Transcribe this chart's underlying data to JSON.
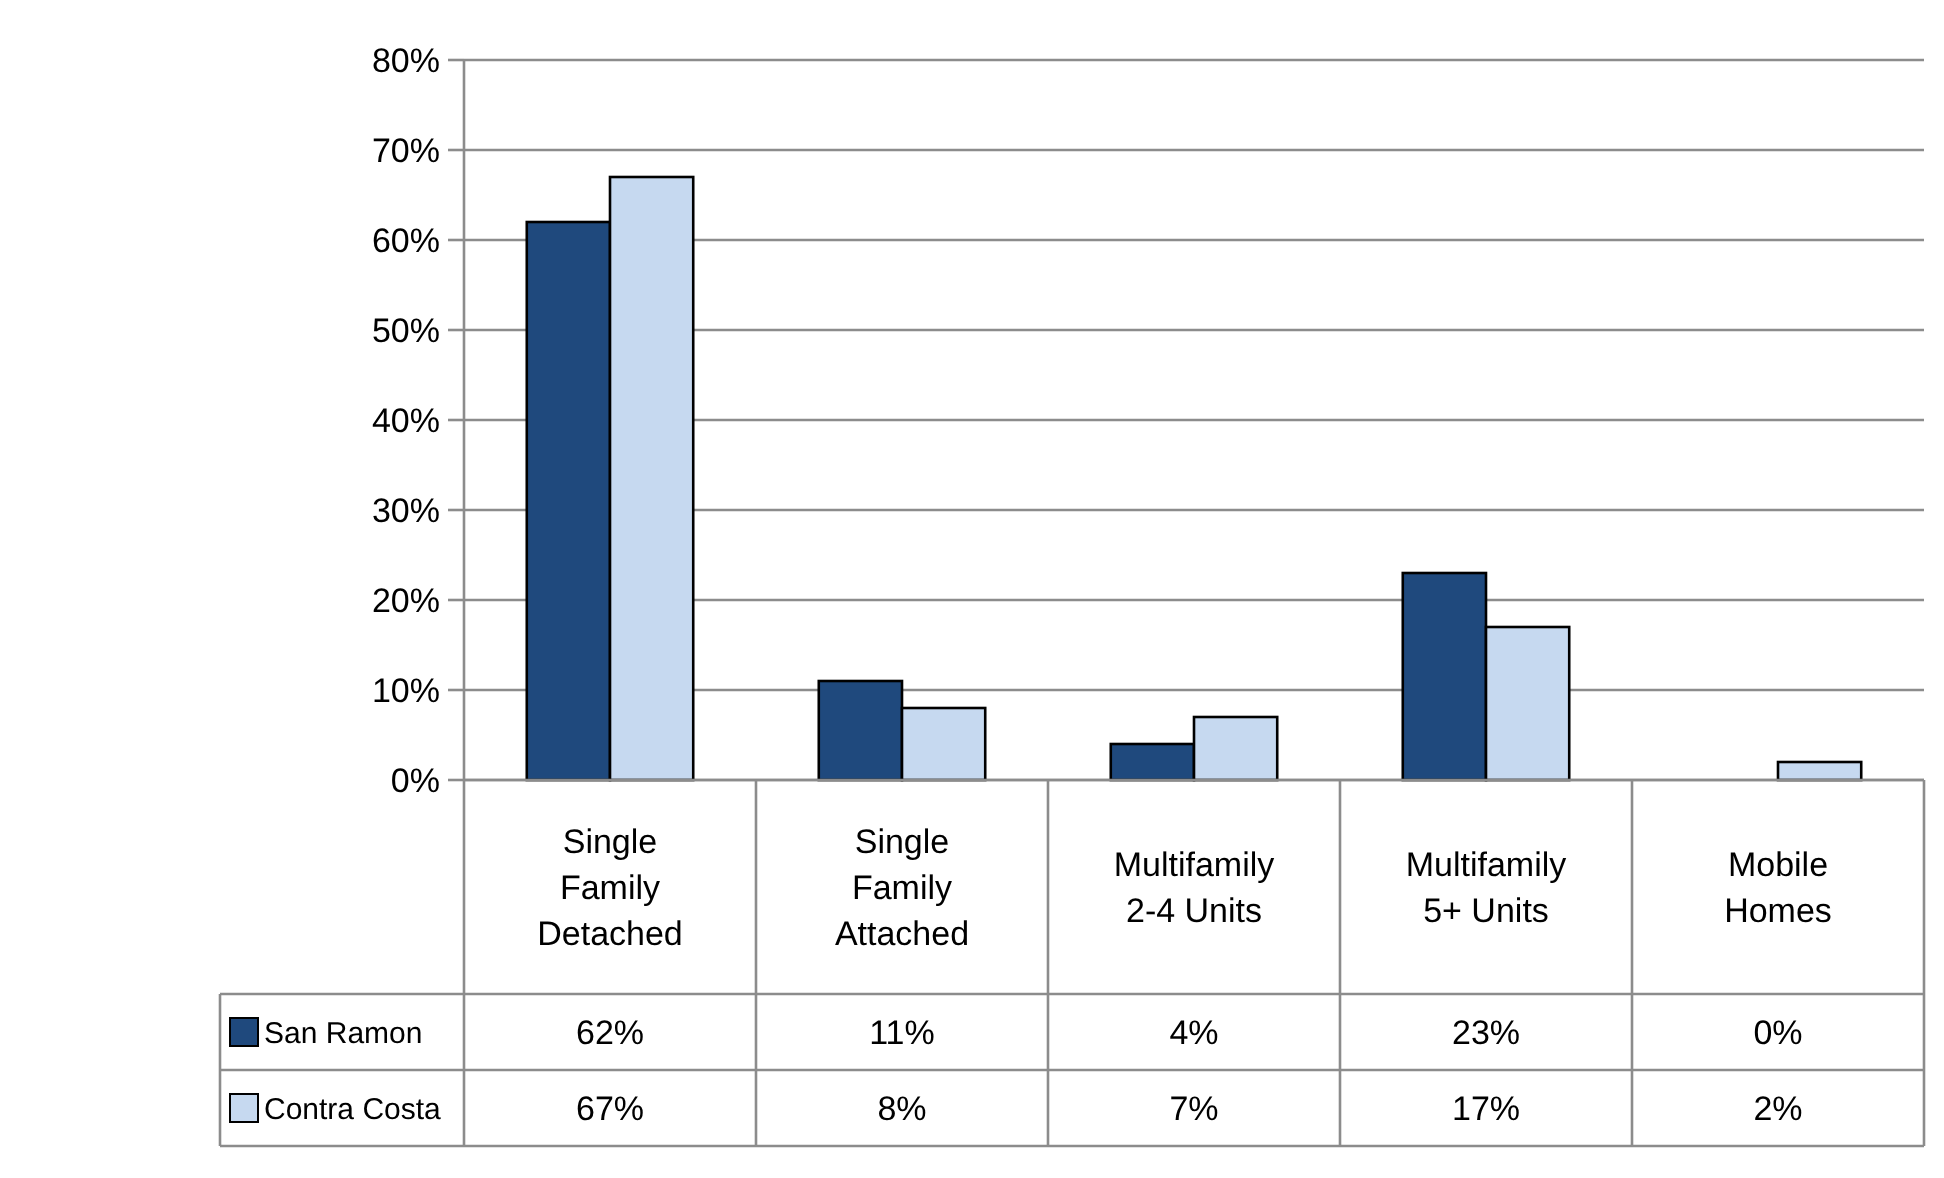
{
  "chart_data": {
    "type": "bar",
    "categories": [
      "Single Family Detached",
      "Single Family Attached",
      "Multifamily 2-4 Units",
      "Multifamily 5+ Units",
      "Mobile Homes"
    ],
    "series": [
      {
        "name": "San Ramon",
        "color": "#1f497d",
        "values": [
          62,
          11,
          4,
          23,
          0
        ],
        "value_labels": [
          "62%",
          "11%",
          "4%",
          "23%",
          "0%"
        ]
      },
      {
        "name": "Contra Costa",
        "color": "#c6d9f0",
        "values": [
          67,
          8,
          7,
          17,
          2
        ],
        "value_labels": [
          "67%",
          "8%",
          "7%",
          "17%",
          "2%"
        ]
      }
    ],
    "ylim": [
      0,
      80
    ],
    "yticks": [
      {
        "value": 0,
        "label": "0%"
      },
      {
        "value": 10,
        "label": "10%"
      },
      {
        "value": 20,
        "label": "20%"
      },
      {
        "value": 30,
        "label": "30%"
      },
      {
        "value": 40,
        "label": "40%"
      },
      {
        "value": 50,
        "label": "50%"
      },
      {
        "value": 60,
        "label": "60%"
      },
      {
        "value": 70,
        "label": "70%"
      },
      {
        "value": 80,
        "label": "80%"
      }
    ],
    "grid": "y",
    "legend": "bottom",
    "data_labels": true
  }
}
